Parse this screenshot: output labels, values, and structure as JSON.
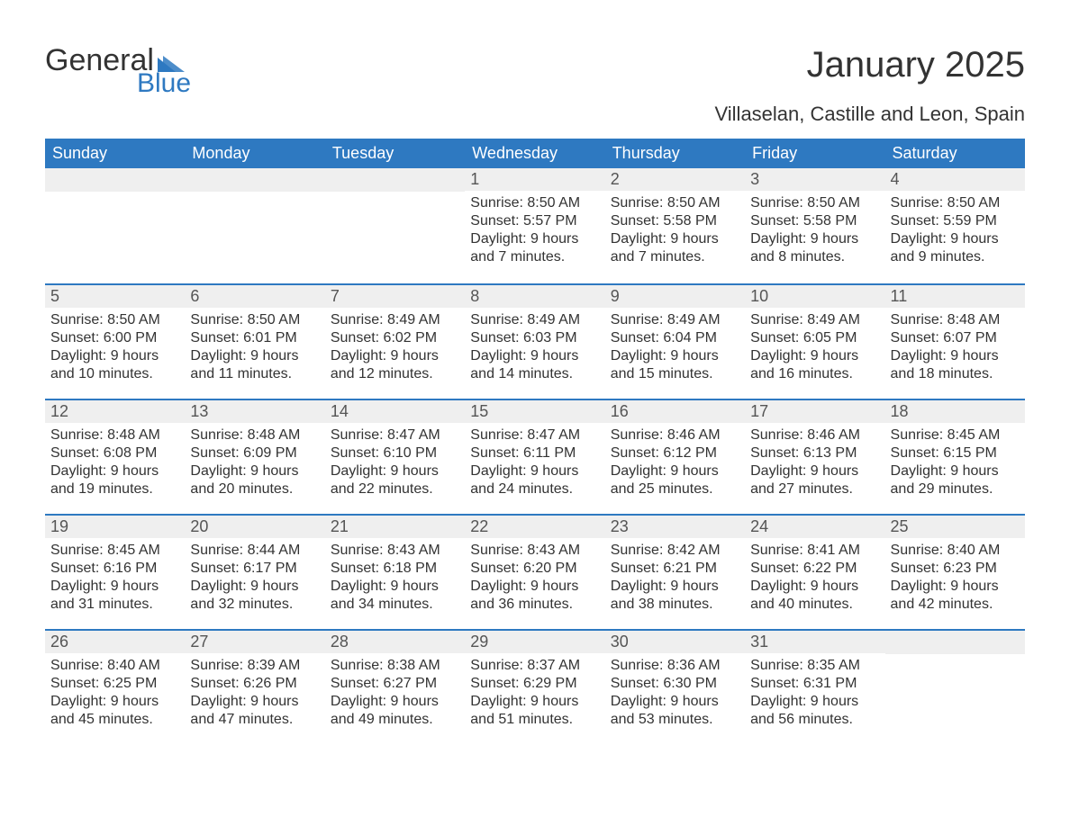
{
  "brand": {
    "general": "General",
    "blue": "Blue",
    "accent_color": "#2e79c1"
  },
  "title": "January 2025",
  "location": "Villaselan, Castille and Leon, Spain",
  "colors": {
    "header_bg": "#2e79c1",
    "header_text": "#ffffff",
    "row_divider": "#2e79c1",
    "daynum_bg": "#efefef",
    "daynum_text": "#555555",
    "body_text": "#333333",
    "page_bg": "#ffffff"
  },
  "fonts": {
    "title_pt": 40,
    "subtitle_pt": 22,
    "dow_pt": 18,
    "daynum_pt": 18,
    "body_pt": 16
  },
  "calendar": {
    "type": "table",
    "columns": [
      "Sunday",
      "Monday",
      "Tuesday",
      "Wednesday",
      "Thursday",
      "Friday",
      "Saturday"
    ],
    "weeks": [
      [
        null,
        null,
        null,
        {
          "n": "1",
          "sunrise": "Sunrise: 8:50 AM",
          "sunset": "Sunset: 5:57 PM",
          "d1": "Daylight: 9 hours",
          "d2": "and 7 minutes."
        },
        {
          "n": "2",
          "sunrise": "Sunrise: 8:50 AM",
          "sunset": "Sunset: 5:58 PM",
          "d1": "Daylight: 9 hours",
          "d2": "and 7 minutes."
        },
        {
          "n": "3",
          "sunrise": "Sunrise: 8:50 AM",
          "sunset": "Sunset: 5:58 PM",
          "d1": "Daylight: 9 hours",
          "d2": "and 8 minutes."
        },
        {
          "n": "4",
          "sunrise": "Sunrise: 8:50 AM",
          "sunset": "Sunset: 5:59 PM",
          "d1": "Daylight: 9 hours",
          "d2": "and 9 minutes."
        }
      ],
      [
        {
          "n": "5",
          "sunrise": "Sunrise: 8:50 AM",
          "sunset": "Sunset: 6:00 PM",
          "d1": "Daylight: 9 hours",
          "d2": "and 10 minutes."
        },
        {
          "n": "6",
          "sunrise": "Sunrise: 8:50 AM",
          "sunset": "Sunset: 6:01 PM",
          "d1": "Daylight: 9 hours",
          "d2": "and 11 minutes."
        },
        {
          "n": "7",
          "sunrise": "Sunrise: 8:49 AM",
          "sunset": "Sunset: 6:02 PM",
          "d1": "Daylight: 9 hours",
          "d2": "and 12 minutes."
        },
        {
          "n": "8",
          "sunrise": "Sunrise: 8:49 AM",
          "sunset": "Sunset: 6:03 PM",
          "d1": "Daylight: 9 hours",
          "d2": "and 14 minutes."
        },
        {
          "n": "9",
          "sunrise": "Sunrise: 8:49 AM",
          "sunset": "Sunset: 6:04 PM",
          "d1": "Daylight: 9 hours",
          "d2": "and 15 minutes."
        },
        {
          "n": "10",
          "sunrise": "Sunrise: 8:49 AM",
          "sunset": "Sunset: 6:05 PM",
          "d1": "Daylight: 9 hours",
          "d2": "and 16 minutes."
        },
        {
          "n": "11",
          "sunrise": "Sunrise: 8:48 AM",
          "sunset": "Sunset: 6:07 PM",
          "d1": "Daylight: 9 hours",
          "d2": "and 18 minutes."
        }
      ],
      [
        {
          "n": "12",
          "sunrise": "Sunrise: 8:48 AM",
          "sunset": "Sunset: 6:08 PM",
          "d1": "Daylight: 9 hours",
          "d2": "and 19 minutes."
        },
        {
          "n": "13",
          "sunrise": "Sunrise: 8:48 AM",
          "sunset": "Sunset: 6:09 PM",
          "d1": "Daylight: 9 hours",
          "d2": "and 20 minutes."
        },
        {
          "n": "14",
          "sunrise": "Sunrise: 8:47 AM",
          "sunset": "Sunset: 6:10 PM",
          "d1": "Daylight: 9 hours",
          "d2": "and 22 minutes."
        },
        {
          "n": "15",
          "sunrise": "Sunrise: 8:47 AM",
          "sunset": "Sunset: 6:11 PM",
          "d1": "Daylight: 9 hours",
          "d2": "and 24 minutes."
        },
        {
          "n": "16",
          "sunrise": "Sunrise: 8:46 AM",
          "sunset": "Sunset: 6:12 PM",
          "d1": "Daylight: 9 hours",
          "d2": "and 25 minutes."
        },
        {
          "n": "17",
          "sunrise": "Sunrise: 8:46 AM",
          "sunset": "Sunset: 6:13 PM",
          "d1": "Daylight: 9 hours",
          "d2": "and 27 minutes."
        },
        {
          "n": "18",
          "sunrise": "Sunrise: 8:45 AM",
          "sunset": "Sunset: 6:15 PM",
          "d1": "Daylight: 9 hours",
          "d2": "and 29 minutes."
        }
      ],
      [
        {
          "n": "19",
          "sunrise": "Sunrise: 8:45 AM",
          "sunset": "Sunset: 6:16 PM",
          "d1": "Daylight: 9 hours",
          "d2": "and 31 minutes."
        },
        {
          "n": "20",
          "sunrise": "Sunrise: 8:44 AM",
          "sunset": "Sunset: 6:17 PM",
          "d1": "Daylight: 9 hours",
          "d2": "and 32 minutes."
        },
        {
          "n": "21",
          "sunrise": "Sunrise: 8:43 AM",
          "sunset": "Sunset: 6:18 PM",
          "d1": "Daylight: 9 hours",
          "d2": "and 34 minutes."
        },
        {
          "n": "22",
          "sunrise": "Sunrise: 8:43 AM",
          "sunset": "Sunset: 6:20 PM",
          "d1": "Daylight: 9 hours",
          "d2": "and 36 minutes."
        },
        {
          "n": "23",
          "sunrise": "Sunrise: 8:42 AM",
          "sunset": "Sunset: 6:21 PM",
          "d1": "Daylight: 9 hours",
          "d2": "and 38 minutes."
        },
        {
          "n": "24",
          "sunrise": "Sunrise: 8:41 AM",
          "sunset": "Sunset: 6:22 PM",
          "d1": "Daylight: 9 hours",
          "d2": "and 40 minutes."
        },
        {
          "n": "25",
          "sunrise": "Sunrise: 8:40 AM",
          "sunset": "Sunset: 6:23 PM",
          "d1": "Daylight: 9 hours",
          "d2": "and 42 minutes."
        }
      ],
      [
        {
          "n": "26",
          "sunrise": "Sunrise: 8:40 AM",
          "sunset": "Sunset: 6:25 PM",
          "d1": "Daylight: 9 hours",
          "d2": "and 45 minutes."
        },
        {
          "n": "27",
          "sunrise": "Sunrise: 8:39 AM",
          "sunset": "Sunset: 6:26 PM",
          "d1": "Daylight: 9 hours",
          "d2": "and 47 minutes."
        },
        {
          "n": "28",
          "sunrise": "Sunrise: 8:38 AM",
          "sunset": "Sunset: 6:27 PM",
          "d1": "Daylight: 9 hours",
          "d2": "and 49 minutes."
        },
        {
          "n": "29",
          "sunrise": "Sunrise: 8:37 AM",
          "sunset": "Sunset: 6:29 PM",
          "d1": "Daylight: 9 hours",
          "d2": "and 51 minutes."
        },
        {
          "n": "30",
          "sunrise": "Sunrise: 8:36 AM",
          "sunset": "Sunset: 6:30 PM",
          "d1": "Daylight: 9 hours",
          "d2": "and 53 minutes."
        },
        {
          "n": "31",
          "sunrise": "Sunrise: 8:35 AM",
          "sunset": "Sunset: 6:31 PM",
          "d1": "Daylight: 9 hours",
          "d2": "and 56 minutes."
        },
        null
      ]
    ]
  }
}
